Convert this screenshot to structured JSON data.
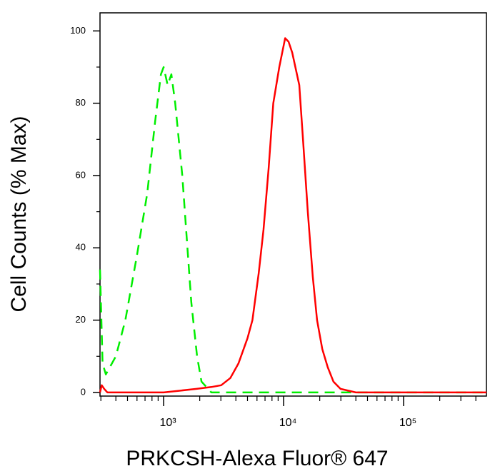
{
  "chart_data": {
    "type": "line",
    "xlabel": "PRKCSH-Alexa Fluor® 647",
    "ylabel": "Cell Counts (% Max)",
    "xscale": "log",
    "xlim": [
      295,
      490000
    ],
    "ylim": [
      -1,
      105
    ],
    "xticks": [
      {
        "value": 1000,
        "label": "10³"
      },
      {
        "value": 10000,
        "label": "10⁴"
      },
      {
        "value": 100000,
        "label": "10⁵"
      }
    ],
    "xminorticks": [
      300,
      400,
      500,
      600,
      700,
      800,
      900,
      2000,
      3000,
      4000,
      5000,
      6000,
      7000,
      8000,
      9000,
      20000,
      30000,
      40000,
      50000,
      60000,
      70000,
      80000,
      90000,
      200000,
      300000,
      400000
    ],
    "yticks": [
      0,
      20,
      40,
      60,
      80,
      100
    ],
    "yminorticks": [
      10,
      30,
      50,
      70,
      90
    ],
    "series": [
      {
        "color": "#00ee00",
        "dashed": true,
        "x": [
          295,
          310,
          330,
          400,
          480,
          600,
          730,
          850,
          950,
          1000,
          1080,
          1160,
          1250,
          1430,
          1700,
          1900,
          2070,
          2500,
          5000,
          20000,
          100000,
          490000
        ],
        "values": [
          34,
          8,
          5,
          10,
          20,
          38,
          55,
          75,
          88,
          90,
          85,
          88,
          80,
          60,
          25,
          10,
          3,
          0,
          0,
          0,
          0,
          0
        ]
      },
      {
        "color": "#ff0000",
        "dashed": false,
        "x": [
          295,
          305,
          320,
          340,
          600,
          1000,
          1880,
          2500,
          3020,
          3600,
          4200,
          5000,
          5500,
          6200,
          6800,
          7500,
          8200,
          9200,
          10300,
          11000,
          11800,
          13500,
          14500,
          15900,
          17500,
          19000,
          21000,
          23300,
          26000,
          29800,
          40000,
          100000,
          490000
        ],
        "values": [
          0,
          2,
          1,
          0,
          0,
          0,
          1,
          1.5,
          2,
          4,
          8,
          15,
          20,
          33,
          45,
          62,
          80,
          90,
          98,
          97,
          94,
          85,
          70,
          50,
          32,
          20,
          12,
          7,
          3,
          1,
          0,
          0,
          0
        ]
      }
    ]
  }
}
